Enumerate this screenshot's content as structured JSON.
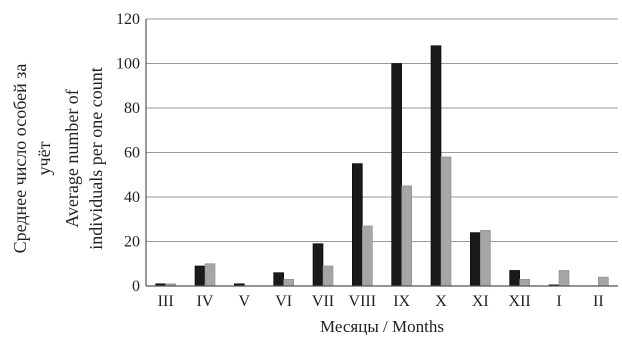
{
  "chart_data": {
    "type": "bar",
    "categories": [
      "III",
      "IV",
      "V",
      "VI",
      "VII",
      "VIII",
      "IX",
      "X",
      "XI",
      "XII",
      "I",
      "II"
    ],
    "series": [
      {
        "color": "#1a1a1a",
        "values": [
          1,
          9,
          1,
          6,
          19,
          55,
          100,
          108,
          24,
          7,
          0.5,
          0
        ]
      },
      {
        "color": "#a6a6a6",
        "values": [
          1,
          10,
          0,
          3,
          9,
          27,
          45,
          58,
          25,
          3,
          7,
          4
        ]
      }
    ],
    "yticks": [
      "0",
      "20",
      "40",
      "60",
      "80",
      "100",
      "120"
    ],
    "ylim": [
      0,
      120
    ],
    "xlabel": "Месяцы / Months",
    "ylabel_lines": [
      "Среднее число особей за",
      "учёт",
      "Average number of",
      "individuals per one count"
    ],
    "grid": true,
    "legend": "none"
  }
}
